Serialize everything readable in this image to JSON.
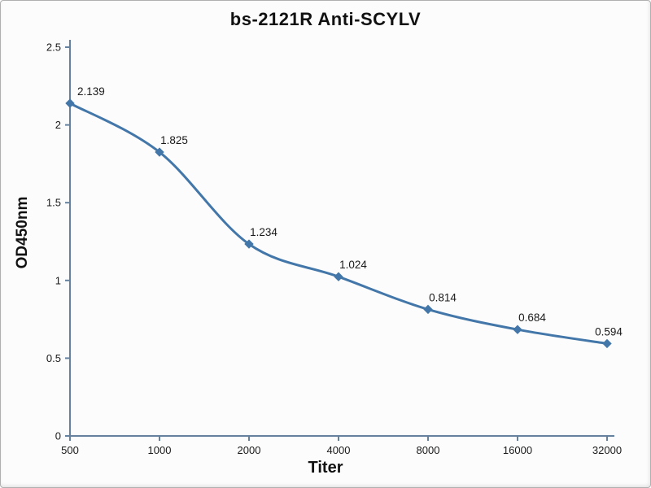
{
  "chart_data": {
    "type": "line",
    "title": "bs-2121R Anti-SCYLV",
    "xlabel": "Titer",
    "ylabel": "OD450nm",
    "categories": [
      "500",
      "1000",
      "2000",
      "4000",
      "8000",
      "16000",
      "32000"
    ],
    "values": [
      2.139,
      1.825,
      1.234,
      1.024,
      0.814,
      0.684,
      0.594
    ],
    "data_labels": [
      "2.139",
      "1.825",
      "1.234",
      "1.024",
      "0.814",
      "0.684",
      "0.594"
    ],
    "ylim": [
      0,
      2.5
    ],
    "yticks": [
      0,
      0.5,
      1,
      1.5,
      2,
      2.5
    ],
    "ytick_labels": [
      "0",
      "0.5",
      "1",
      "1.5",
      "2",
      "2.5"
    ],
    "grid": false,
    "legend": false,
    "marker": "diamond",
    "colors": {
      "line": "#4377a9",
      "axis": "#65819e",
      "text": "#1a1a1a",
      "background": "#fcfcfc",
      "border": "#b0b0b0"
    }
  }
}
